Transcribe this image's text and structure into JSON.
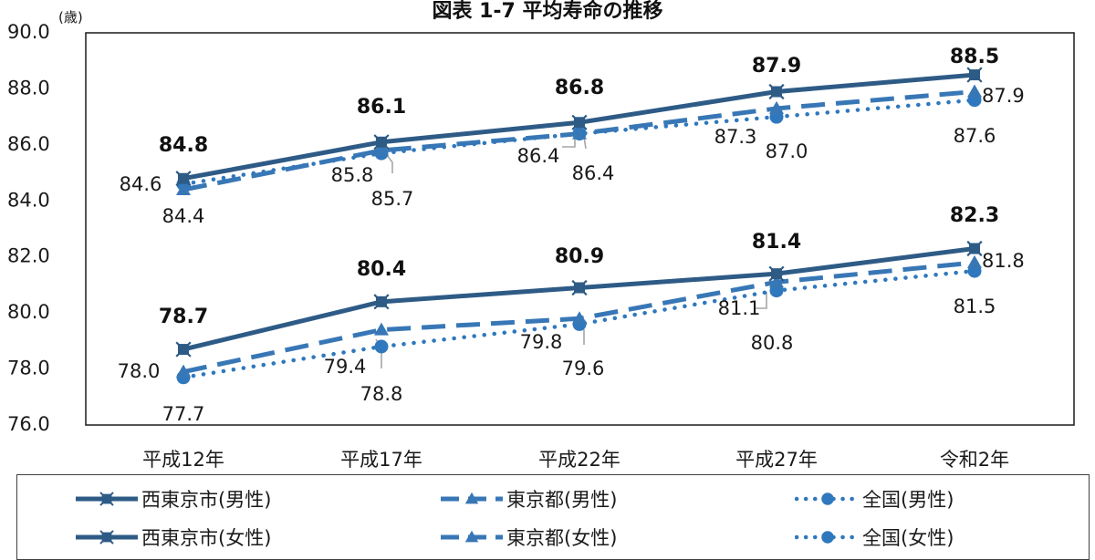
{
  "title": "図表 1-7 平均寿命の推移",
  "colors": {
    "nishitokyo": "#2e5b86",
    "tokyo": "#3877b6",
    "national": "#2f78bd",
    "axis": "#1a1a1a",
    "leader": "#a6a6a6"
  },
  "chart_data": {
    "type": "line",
    "title": "図表 1-7 平均寿命の推移",
    "ylabel": "(歳)",
    "ylim": [
      76.0,
      90.0
    ],
    "yticks": [
      "76.0",
      "78.0",
      "80.0",
      "82.0",
      "84.0",
      "86.0",
      "88.0",
      "90.0"
    ],
    "categories": [
      "平成12年",
      "平成17年",
      "平成22年",
      "平成27年",
      "令和2年"
    ],
    "grid": false,
    "legend_position": "bottom",
    "series": [
      {
        "name": "西東京市(男性)",
        "values": [
          78.7,
          80.4,
          80.9,
          81.4,
          82.3
        ],
        "style": "solid",
        "marker": "star",
        "labels": [
          "78.7",
          "80.4",
          "80.9",
          "81.4",
          "82.3"
        ]
      },
      {
        "name": "東京都(男性)",
        "values": [
          77.9,
          79.4,
          79.8,
          81.1,
          81.8
        ],
        "style": "dash",
        "marker": "triangle",
        "labels": [
          "",
          "79.4",
          "79.8",
          "81.1",
          "81.8"
        ]
      },
      {
        "name": "全国(男性)",
        "values": [
          77.7,
          78.8,
          79.6,
          80.8,
          81.5
        ],
        "style": "dot",
        "marker": "circle",
        "labels": [
          "77.7",
          "78.8",
          "79.6",
          "80.8",
          "81.5"
        ]
      },
      {
        "name": "西東京市(女性)",
        "values": [
          84.8,
          86.1,
          86.8,
          87.9,
          88.5
        ],
        "style": "solid",
        "marker": "star",
        "labels": [
          "84.8",
          "86.1",
          "86.8",
          "87.9",
          "88.5"
        ]
      },
      {
        "name": "東京都(女性)",
        "values": [
          84.4,
          85.8,
          86.4,
          87.3,
          87.9
        ],
        "style": "dash",
        "marker": "triangle",
        "labels": [
          "84.4",
          "85.8",
          "86.4",
          "87.3",
          "87.9"
        ]
      },
      {
        "name": "全国(女性)",
        "values": [
          84.6,
          85.7,
          86.4,
          87.0,
          87.6
        ],
        "style": "dot",
        "marker": "circle",
        "labels": [
          "84.6",
          "85.7",
          "86.4",
          "87.0",
          "87.6"
        ]
      }
    ],
    "extra_labels": [
      "78.0"
    ]
  },
  "legend": {
    "items": [
      {
        "label": "西東京市(男性)",
        "style": "solid",
        "marker": "star"
      },
      {
        "label": "東京都(男性)",
        "style": "dash",
        "marker": "triangle"
      },
      {
        "label": "全国(男性)",
        "style": "dot",
        "marker": "circle"
      },
      {
        "label": "西東京市(女性)",
        "style": "solid",
        "marker": "star"
      },
      {
        "label": "東京都(女性)",
        "style": "dash",
        "marker": "triangle"
      },
      {
        "label": "全国(女性)",
        "style": "dot",
        "marker": "circle"
      }
    ]
  }
}
